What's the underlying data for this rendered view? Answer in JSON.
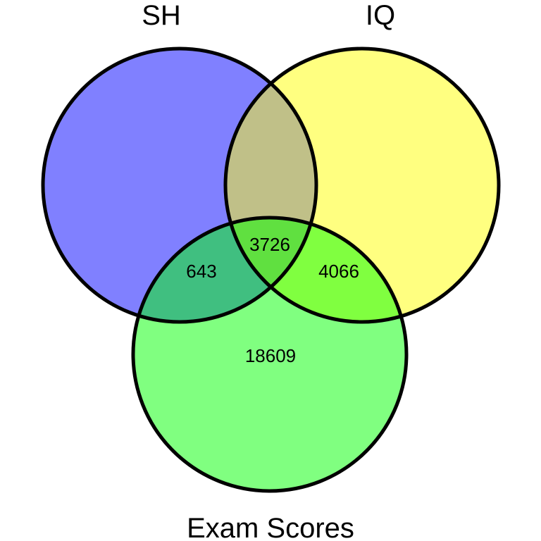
{
  "chart_data": {
    "type": "venn",
    "sets": [
      {
        "name": "SH",
        "color": "#8080ff"
      },
      {
        "name": "IQ",
        "color": "#ffff80"
      },
      {
        "name": "Exam Scores",
        "color": "#80ff80"
      }
    ],
    "regions": {
      "sh_only": "",
      "iq_only": "",
      "exam_only": "18609",
      "sh_iq": "",
      "sh_exam": "643",
      "iq_exam": "4066",
      "sh_iq_exam": "3726"
    },
    "overlap_colors": {
      "sh_iq": "#c0c088",
      "sh_exam": "#40bf80",
      "iq_exam": "#80ff40",
      "sh_iq_exam": "#60e040"
    }
  }
}
